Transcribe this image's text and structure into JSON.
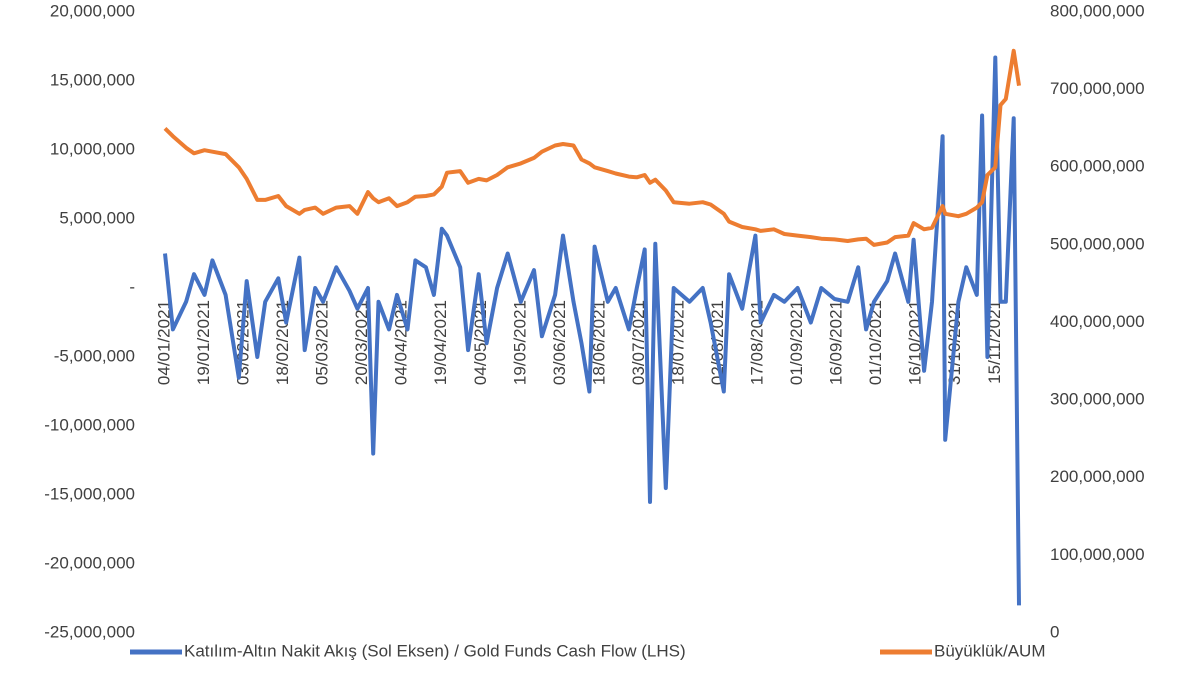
{
  "chart_data": {
    "type": "line",
    "x": [
      "04/01/2021",
      "07/01/2021",
      "12/01/2021",
      "15/01/2021",
      "19/01/2021",
      "22/01/2021",
      "27/01/2021",
      "01/02/2021",
      "04/02/2021",
      "08/02/2021",
      "11/02/2021",
      "16/02/2021",
      "19/02/2021",
      "24/02/2021",
      "26/02/2021",
      "02/03/2021",
      "05/03/2021",
      "10/03/2021",
      "15/03/2021",
      "18/03/2021",
      "22/03/2021",
      "24/03/2021",
      "26/03/2021",
      "30/03/2021",
      "02/04/2021",
      "06/04/2021",
      "09/04/2021",
      "13/04/2021",
      "16/04/2021",
      "19/04/2021",
      "21/04/2021",
      "26/04/2021",
      "29/04/2021",
      "03/05/2021",
      "06/05/2021",
      "10/05/2021",
      "14/05/2021",
      "19/05/2021",
      "24/05/2021",
      "27/05/2021",
      "01/06/2021",
      "04/06/2021",
      "08/06/2021",
      "11/06/2021",
      "14/06/2021",
      "16/06/2021",
      "21/06/2021",
      "24/06/2021",
      "29/06/2021",
      "02/07/2021",
      "05/07/2021",
      "07/07/2021",
      "09/07/2021",
      "13/07/2021",
      "16/07/2021",
      "22/07/2021",
      "27/07/2021",
      "30/07/2021",
      "04/08/2021",
      "06/08/2021",
      "11/08/2021",
      "16/08/2021",
      "18/08/2021",
      "23/08/2021",
      "27/08/2021",
      "01/09/2021",
      "06/09/2021",
      "10/09/2021",
      "15/09/2021",
      "20/09/2021",
      "24/09/2021",
      "27/09/2021",
      "30/09/2021",
      "05/10/2021",
      "08/10/2021",
      "13/10/2021",
      "15/10/2021",
      "19/10/2021",
      "22/10/2021",
      "26/10/2021",
      "27/10/2021",
      "01/11/2021",
      "04/11/2021",
      "08/11/2021",
      "10/11/2021",
      "12/11/2021",
      "15/11/2021",
      "17/11/2021",
      "19/11/2021",
      "22/11/2021",
      "24/11/2021"
    ],
    "xlim": [
      "04/01/2021",
      "24/11/2021"
    ],
    "xticks": [
      "04/01/2021",
      "19/01/2021",
      "03/02/2021",
      "18/02/2021",
      "05/03/2021",
      "20/03/2021",
      "04/04/2021",
      "19/04/2021",
      "04/05/2021",
      "19/05/2021",
      "03/06/2021",
      "18/06/2021",
      "03/07/2021",
      "18/07/2021",
      "02/08/2021",
      "17/08/2021",
      "01/09/2021",
      "16/09/2021",
      "01/10/2021",
      "16/10/2021",
      "31/10/2021",
      "15/11/2021"
    ],
    "series": [
      {
        "name": "Katılım-Altın Nakit Akış (Sol Eksen) / Gold Funds Cash Flow (LHS)",
        "color": "#4472c4",
        "axis": "y",
        "values": [
          2500000,
          -3000000,
          -1000000,
          1000000,
          -500000,
          2000000,
          -500000,
          -6500000,
          500000,
          -5000000,
          -1000000,
          700000,
          -2500000,
          2200000,
          -4500000,
          0,
          -1000000,
          1500000,
          -200000,
          -1500000,
          0,
          -12000000,
          -1000000,
          -3000000,
          -500000,
          -3000000,
          2000000,
          1500000,
          -500000,
          4300000,
          3800000,
          1500000,
          -4500000,
          1000000,
          -4000000,
          0,
          2500000,
          -1000000,
          1300000,
          -3500000,
          -500000,
          3800000,
          -1000000,
          -4000000,
          -7500000,
          3000000,
          -1000000,
          0,
          -3000000,
          0,
          2800000,
          -15500000,
          3200000,
          -14500000,
          0,
          -1000000,
          0,
          -2500000,
          -7500000,
          1000000,
          -1500000,
          3800000,
          -2500000,
          -500000,
          -1000000,
          0,
          -2500000,
          0,
          -800000,
          -1000000,
          1500000,
          -3000000,
          -1000000,
          500000,
          2500000,
          -1000000,
          3500000,
          -6000000,
          -1000000,
          11000000,
          -11000000,
          -1000000,
          1500000,
          -500000,
          12500000,
          -5000000,
          16700000,
          -1000000,
          -1000000,
          12300000,
          -23000000
        ]
      },
      {
        "name": "Büyüklük/AUM",
        "color": "#ed7d31",
        "axis": "y2",
        "values": [
          650000000,
          640000000,
          625000000,
          618000000,
          622000000,
          620000000,
          617000000,
          600000000,
          585000000,
          558000000,
          558000000,
          563000000,
          550000000,
          540000000,
          545000000,
          548000000,
          540000000,
          548000000,
          550000000,
          540000000,
          568000000,
          560000000,
          555000000,
          560000000,
          550000000,
          555000000,
          562000000,
          563000000,
          565000000,
          575000000,
          593000000,
          595000000,
          580000000,
          585000000,
          583000000,
          590000000,
          600000000,
          605000000,
          612000000,
          620000000,
          628000000,
          630000000,
          628000000,
          610000000,
          605000000,
          600000000,
          595000000,
          592000000,
          588000000,
          587000000,
          590000000,
          580000000,
          584000000,
          570000000,
          555000000,
          553000000,
          555000000,
          552000000,
          540000000,
          530000000,
          523000000,
          520000000,
          518000000,
          520000000,
          514000000,
          512000000,
          510000000,
          508000000,
          507000000,
          505000000,
          507000000,
          508000000,
          500000000,
          503000000,
          510000000,
          512000000,
          528000000,
          520000000,
          522000000,
          550000000,
          540000000,
          537000000,
          540000000,
          548000000,
          555000000,
          590000000,
          600000000,
          680000000,
          688000000,
          750000000,
          705000000
        ]
      }
    ],
    "ylim": [
      -25000000,
      20000000
    ],
    "yticks": [
      {
        "value": -25000000,
        "label": "-25,000,000"
      },
      {
        "value": -20000000,
        "label": "-20,000,000"
      },
      {
        "value": -15000000,
        "label": "-15,000,000"
      },
      {
        "value": -10000000,
        "label": "-10,000,000"
      },
      {
        "value": -5000000,
        "label": "-5,000,000"
      },
      {
        "value": 0,
        "label": "-"
      },
      {
        "value": 5000000,
        "label": "5,000,000"
      },
      {
        "value": 10000000,
        "label": "10,000,000"
      },
      {
        "value": 15000000,
        "label": "15,000,000"
      },
      {
        "value": 20000000,
        "label": "20,000,000"
      }
    ],
    "y2lim": [
      0,
      800000000
    ],
    "y2ticks": [
      0,
      {
        "value": 100000000,
        "label": "100,000,000"
      },
      {
        "value": 200000000,
        "label": "200,000,000"
      },
      {
        "value": 300000000,
        "label": "300,000,000"
      },
      {
        "value": 400000000,
        "label": "400,000,000"
      },
      {
        "value": 500000000,
        "label": "500,000,000"
      },
      {
        "value": 600000000,
        "label": "600,000,000"
      },
      {
        "value": 700000000,
        "label": "700,000,000"
      },
      {
        "value": 800000000,
        "label": "800,000,000"
      }
    ],
    "legend": "bottom"
  }
}
